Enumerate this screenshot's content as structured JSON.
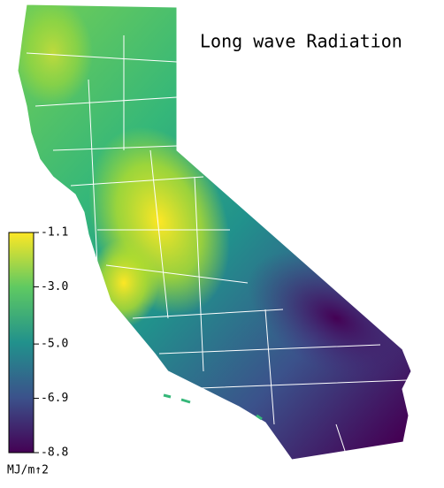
{
  "title": "Long wave Radiation",
  "colorbar": {
    "label": "MJ/m↑2",
    "range": [
      -8.8,
      -1.1
    ],
    "colormap": "viridis",
    "ticks": [
      -1.1,
      {
        "value": -3,
        "label": "-3.0"
      },
      {
        "value": -5,
        "label": "-5.0"
      },
      -6.9,
      -8.8
    ]
  }
}
